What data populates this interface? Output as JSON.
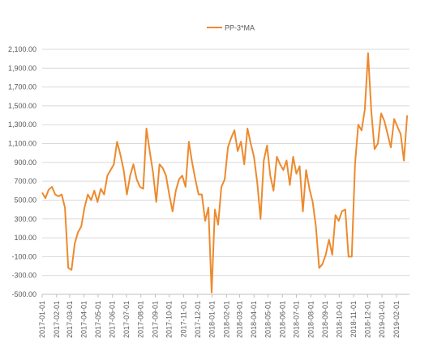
{
  "chart_data": {
    "type": "line",
    "title": "",
    "xlabel": "",
    "ylabel": "",
    "ylim": [
      -500,
      2100
    ],
    "y_ticks": [
      2100,
      1900,
      1700,
      1500,
      1300,
      1100,
      900,
      700,
      500,
      300,
      100,
      -100,
      -300,
      -500
    ],
    "y_tick_labels": [
      "2,100.00",
      "1,900.00",
      "1,700.00",
      "1,500.00",
      "1,300.00",
      "1,100.00",
      "900.00",
      "700.00",
      "500.00",
      "300.00",
      "100.00",
      "-100.00",
      "-300.00",
      "-500.00"
    ],
    "x_tick_labels": [
      "2017-01-01",
      "2017-02-01",
      "2017-03-01",
      "2017-04-01",
      "2017-05-01",
      "2017-06-01",
      "2017-07-01",
      "2017-08-01",
      "2017-09-01",
      "2017-10-01",
      "2017-11-01",
      "2017-12-01",
      "2018-01-01",
      "2018-02-01",
      "2018-03-01",
      "2018-04-01",
      "2018-05-01",
      "2018-06-01",
      "2018-07-01",
      "2018-08-01",
      "2018-09-01",
      "2018-10-01",
      "2018-11-01",
      "2018-12-01",
      "2019-01-01",
      "2019-02-01"
    ],
    "grid": true,
    "legend_position": "top",
    "color": "#ED8A2E",
    "series": [
      {
        "name": "PP-3*MA",
        "x": [
          "2017-01-01",
          "2017-01-08",
          "2017-01-15",
          "2017-01-22",
          "2017-01-29",
          "2017-02-05",
          "2017-02-12",
          "2017-02-19",
          "2017-02-26",
          "2017-03-05",
          "2017-03-12",
          "2017-03-19",
          "2017-03-26",
          "2017-04-02",
          "2017-04-09",
          "2017-04-16",
          "2017-04-23",
          "2017-04-30",
          "2017-05-07",
          "2017-05-14",
          "2017-05-21",
          "2017-05-28",
          "2017-06-04",
          "2017-06-11",
          "2017-06-18",
          "2017-06-25",
          "2017-07-02",
          "2017-07-09",
          "2017-07-16",
          "2017-07-23",
          "2017-07-30",
          "2017-08-06",
          "2017-08-13",
          "2017-08-20",
          "2017-08-27",
          "2017-09-03",
          "2017-09-10",
          "2017-09-17",
          "2017-09-24",
          "2017-10-01",
          "2017-10-08",
          "2017-10-15",
          "2017-10-22",
          "2017-10-29",
          "2017-11-05",
          "2017-11-12",
          "2017-11-19",
          "2017-11-26",
          "2017-12-03",
          "2017-12-10",
          "2017-12-17",
          "2017-12-24",
          "2017-12-31",
          "2018-01-07",
          "2018-01-14",
          "2018-01-21",
          "2018-01-28",
          "2018-02-04",
          "2018-02-11",
          "2018-02-18",
          "2018-02-25",
          "2018-03-04",
          "2018-03-11",
          "2018-03-18",
          "2018-03-25",
          "2018-04-01",
          "2018-04-08",
          "2018-04-15",
          "2018-04-22",
          "2018-04-29",
          "2018-05-06",
          "2018-05-13",
          "2018-05-20",
          "2018-05-27",
          "2018-06-03",
          "2018-06-10",
          "2018-06-17",
          "2018-06-24",
          "2018-07-01",
          "2018-07-08",
          "2018-07-15",
          "2018-07-22",
          "2018-07-29",
          "2018-08-05",
          "2018-08-12",
          "2018-08-19",
          "2018-08-26",
          "2018-09-02",
          "2018-09-09",
          "2018-09-16",
          "2018-09-23",
          "2018-09-30",
          "2018-10-07",
          "2018-10-14",
          "2018-10-21",
          "2018-10-28",
          "2018-11-04",
          "2018-11-11",
          "2018-11-18",
          "2018-11-25",
          "2018-12-02",
          "2018-12-09",
          "2018-12-16",
          "2018-12-23",
          "2018-12-30",
          "2019-01-06",
          "2019-01-13",
          "2019-01-20",
          "2019-01-27",
          "2019-02-03",
          "2019-02-10",
          "2019-02-17",
          "2019-02-24"
        ],
        "values": [
          580,
          520,
          610,
          640,
          560,
          540,
          560,
          420,
          -220,
          -240,
          40,
          160,
          220,
          420,
          560,
          500,
          600,
          480,
          620,
          560,
          760,
          820,
          880,
          1120,
          980,
          820,
          560,
          760,
          880,
          720,
          640,
          620,
          1260,
          1020,
          800,
          480,
          880,
          840,
          760,
          560,
          380,
          600,
          720,
          760,
          640,
          1120,
          900,
          720,
          560,
          560,
          280,
          420,
          -480,
          400,
          240,
          640,
          720,
          1060,
          1160,
          1240,
          1020,
          1120,
          880,
          1260,
          1100,
          960,
          680,
          300,
          920,
          1080,
          760,
          600,
          960,
          880,
          820,
          920,
          660,
          960,
          780,
          860,
          380,
          820,
          620,
          480,
          220,
          -220,
          -180,
          -80,
          80,
          -80,
          340,
          280,
          380,
          400,
          -100,
          -100,
          880,
          1300,
          1240,
          1460,
          2060,
          1440,
          1040,
          1100,
          1420,
          1340,
          1200,
          1060,
          1360,
          1280,
          1200,
          920,
          1400
        ]
      }
    ]
  }
}
